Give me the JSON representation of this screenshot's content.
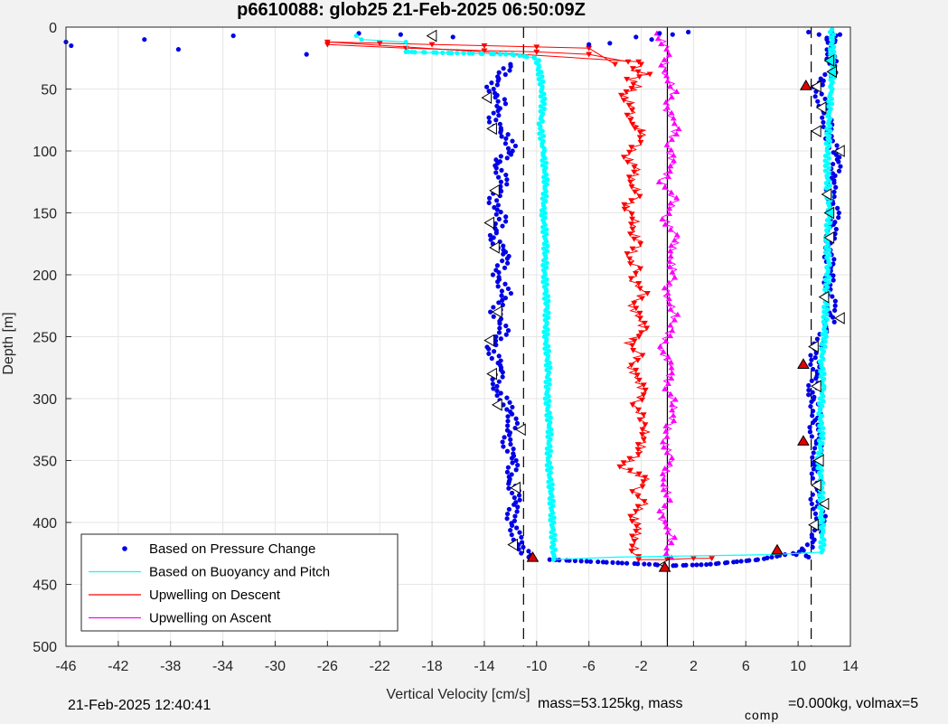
{
  "chart_data": {
    "type": "scatter",
    "title": "p6610088: glob25 21-Feb-2025 06:50:09Z",
    "xlabel": "Vertical Velocity [cm/s]",
    "ylabel": "Depth [m]",
    "xlim": [
      -46,
      14
    ],
    "ylim": [
      0,
      500
    ],
    "y_reversed": true,
    "grid": true,
    "x_ticks": [
      -46,
      -42,
      -38,
      -34,
      -30,
      -26,
      -22,
      -18,
      -14,
      -10,
      -6,
      -2,
      2,
      6,
      10,
      14
    ],
    "y_ticks": [
      0,
      50,
      100,
      150,
      200,
      250,
      300,
      350,
      400,
      450,
      500
    ],
    "legend_position": "bottom-left",
    "colors": {
      "pressure": "#0000e6",
      "buoyancy": "#00ffff",
      "descent": "#ff0000",
      "ascent": "#ff00ff",
      "marker_red": "#e00000"
    },
    "reference_lines": [
      {
        "x": -11,
        "style": "dashed"
      },
      {
        "x": 11,
        "style": "dashed"
      },
      {
        "x": 0,
        "style": "solid"
      }
    ],
    "series": [
      {
        "name": "Based on Pressure Change",
        "marker": "dot",
        "descent": [
          [
            -12,
            30
          ],
          [
            -12.8,
            40
          ],
          [
            -13.6,
            50
          ],
          [
            -12.6,
            60
          ],
          [
            -13.4,
            75
          ],
          [
            -12.2,
            90
          ],
          [
            -11.8,
            100
          ],
          [
            -13.2,
            110
          ],
          [
            -12.4,
            125
          ],
          [
            -13.4,
            140
          ],
          [
            -12.6,
            155
          ],
          [
            -13.4,
            170
          ],
          [
            -12.2,
            185
          ],
          [
            -13.1,
            200
          ],
          [
            -12.3,
            215
          ],
          [
            -13.2,
            230
          ],
          [
            -12.4,
            245
          ],
          [
            -13.6,
            260
          ],
          [
            -12.6,
            275
          ],
          [
            -13.3,
            290
          ],
          [
            -12.2,
            305
          ],
          [
            -11.8,
            320
          ],
          [
            -12.4,
            335
          ],
          [
            -11.6,
            350
          ],
          [
            -12.2,
            365
          ],
          [
            -11.4,
            380
          ],
          [
            -12,
            395
          ],
          [
            -11.6,
            410
          ],
          [
            -11.2,
            420
          ],
          [
            -10.6,
            428
          ]
        ],
        "ascent": [
          [
            10.8,
            428
          ],
          [
            9.8,
            425
          ],
          [
            10.8,
            420
          ],
          [
            11.4,
            410
          ],
          [
            11.8,
            395
          ],
          [
            11.2,
            385
          ],
          [
            11.6,
            370
          ],
          [
            11.2,
            355
          ],
          [
            11.6,
            340
          ],
          [
            11.2,
            325
          ],
          [
            11.4,
            310
          ],
          [
            11,
            295
          ],
          [
            11.4,
            280
          ],
          [
            11.2,
            265
          ],
          [
            11.8,
            250
          ],
          [
            12.4,
            240
          ],
          [
            12.6,
            225
          ],
          [
            12.2,
            210
          ],
          [
            12.6,
            195
          ],
          [
            12.2,
            180
          ],
          [
            12.6,
            165
          ],
          [
            12.8,
            150
          ],
          [
            12.4,
            135
          ],
          [
            12.8,
            120
          ],
          [
            13,
            105
          ],
          [
            12.4,
            90
          ],
          [
            12.2,
            75
          ],
          [
            11.8,
            60
          ],
          [
            11.4,
            50
          ],
          [
            11.6,
            45
          ],
          [
            12.8,
            35
          ],
          [
            12.4,
            20
          ],
          [
            12.6,
            5
          ]
        ],
        "turn": [
          [
            -9,
            430
          ],
          [
            -7,
            431
          ],
          [
            -5,
            432
          ],
          [
            -3,
            433
          ],
          [
            -1,
            434
          ],
          [
            0,
            435
          ],
          [
            3,
            434
          ],
          [
            5,
            432
          ],
          [
            7,
            430
          ],
          [
            9,
            426
          ]
        ],
        "surface": [
          [
            -46,
            12
          ],
          [
            -45.6,
            15
          ],
          [
            -40,
            10
          ],
          [
            -37.4,
            18
          ],
          [
            -33.2,
            7
          ],
          [
            -27.6,
            22
          ],
          [
            -23.6,
            5
          ],
          [
            -20.4,
            6
          ],
          [
            -16.4,
            8
          ],
          [
            -6,
            14
          ],
          [
            -4.4,
            13
          ],
          [
            -2.4,
            8
          ],
          [
            -1.2,
            10
          ],
          [
            0.4,
            6
          ],
          [
            1.6,
            4
          ],
          [
            -0.6,
            5
          ],
          [
            10.8,
            4
          ],
          [
            11.6,
            6
          ],
          [
            12.2,
            10
          ],
          [
            12.8,
            12
          ],
          [
            13.2,
            6
          ]
        ]
      },
      {
        "name": "Based on Buoyancy and Pitch",
        "marker": "line",
        "descent": [
          [
            -20,
            20
          ],
          [
            -16,
            21
          ],
          [
            -12,
            22
          ],
          [
            -10,
            25
          ],
          [
            -9.7,
            40
          ],
          [
            -9.5,
            60
          ],
          [
            -9.7,
            80
          ],
          [
            -9.5,
            100
          ],
          [
            -9.3,
            125
          ],
          [
            -9.5,
            150
          ],
          [
            -9.3,
            175
          ],
          [
            -9.4,
            200
          ],
          [
            -9.2,
            225
          ],
          [
            -9.3,
            250
          ],
          [
            -9.1,
            275
          ],
          [
            -9.2,
            300
          ],
          [
            -9,
            325
          ],
          [
            -9.1,
            350
          ],
          [
            -8.9,
            375
          ],
          [
            -8.8,
            400
          ],
          [
            -8.7,
            420
          ],
          [
            -8.7,
            430
          ]
        ],
        "turn": [
          [
            -8.7,
            430
          ],
          [
            -4,
            428
          ],
          [
            2,
            427
          ],
          [
            8,
            426
          ],
          [
            11.8,
            424
          ]
        ],
        "ascent": [
          [
            11.8,
            424
          ],
          [
            11.9,
            410
          ],
          [
            11.7,
            390
          ],
          [
            11.8,
            370
          ],
          [
            11.6,
            350
          ],
          [
            11.8,
            330
          ],
          [
            11.7,
            310
          ],
          [
            11.9,
            290
          ],
          [
            11.8,
            270
          ],
          [
            12,
            250
          ],
          [
            12.1,
            230
          ],
          [
            12.2,
            210
          ],
          [
            12.3,
            190
          ],
          [
            12.2,
            170
          ],
          [
            12.4,
            150
          ],
          [
            12.3,
            130
          ],
          [
            12.2,
            110
          ],
          [
            12.3,
            90
          ],
          [
            12.4,
            70
          ],
          [
            12.5,
            50
          ],
          [
            12.7,
            35
          ],
          [
            12.6,
            20
          ],
          [
            12.6,
            2
          ]
        ],
        "surface": [
          [
            -23.8,
            7
          ],
          [
            -23.4,
            10
          ],
          [
            -20,
            12
          ],
          [
            -19.8,
            20
          ]
        ]
      },
      {
        "name": "Upwelling on Descent",
        "marker": "down-triangle",
        "values": [
          [
            -2,
            30
          ],
          [
            -2.6,
            35
          ],
          [
            -1.6,
            38
          ],
          [
            -2.8,
            42
          ],
          [
            -2.2,
            48
          ],
          [
            -3.4,
            55
          ],
          [
            -2.5,
            65
          ],
          [
            -3,
            75
          ],
          [
            -1.8,
            85
          ],
          [
            -2.3,
            95
          ],
          [
            -3.1,
            105
          ],
          [
            -2.2,
            115
          ],
          [
            -2.9,
            125
          ],
          [
            -2,
            135
          ],
          [
            -3.2,
            145
          ],
          [
            -2.4,
            155
          ],
          [
            -2.7,
            165
          ],
          [
            -2,
            175
          ],
          [
            -3,
            185
          ],
          [
            -2.3,
            195
          ],
          [
            -2.6,
            205
          ],
          [
            -1.8,
            215
          ],
          [
            -2.8,
            225
          ],
          [
            -2.1,
            235
          ],
          [
            -1.8,
            245
          ],
          [
            -3,
            255
          ],
          [
            -2.2,
            265
          ],
          [
            -2.8,
            275
          ],
          [
            -2.3,
            285
          ],
          [
            -1.8,
            295
          ],
          [
            -2.5,
            305
          ],
          [
            -2,
            315
          ],
          [
            -1.6,
            325
          ],
          [
            -1.9,
            335
          ],
          [
            -2.1,
            345
          ],
          [
            -3.6,
            355
          ],
          [
            -1.6,
            365
          ],
          [
            -2.4,
            375
          ],
          [
            -1.8,
            385
          ],
          [
            -2.6,
            395
          ],
          [
            -2.1,
            405
          ],
          [
            -2.6,
            415
          ],
          [
            -2.4,
            425
          ],
          [
            -2.2,
            430
          ]
        ],
        "surface": [
          [
            -2.2,
            28
          ],
          [
            -26,
            12
          ],
          [
            -22,
            13
          ],
          [
            -18,
            14
          ],
          [
            -14,
            15
          ],
          [
            -10,
            16
          ],
          [
            -6,
            17
          ],
          [
            -4,
            30
          ]
        ],
        "surface_down": [
          [
            -26,
            14
          ],
          [
            -20,
            17
          ],
          [
            -14,
            19
          ],
          [
            -10,
            20
          ],
          [
            -6,
            22
          ],
          [
            -3,
            28
          ]
        ],
        "turn": [
          [
            -2.2,
            430
          ],
          [
            0,
            430
          ],
          [
            2,
            429
          ],
          [
            3.4,
            429
          ]
        ]
      },
      {
        "name": "Upwelling on Ascent",
        "marker": "up-triangle",
        "values": [
          [
            -0.8,
            5
          ],
          [
            0.2,
            20
          ],
          [
            -0.4,
            35
          ],
          [
            0.6,
            50
          ],
          [
            -0.2,
            65
          ],
          [
            0.8,
            80
          ],
          [
            0,
            95
          ],
          [
            0.4,
            110
          ],
          [
            -0.4,
            125
          ],
          [
            0.6,
            140
          ],
          [
            -0.2,
            155
          ],
          [
            0.8,
            170
          ],
          [
            0.2,
            185
          ],
          [
            0.6,
            200
          ],
          [
            -0.2,
            215
          ],
          [
            0.6,
            230
          ],
          [
            0.2,
            245
          ],
          [
            -0.6,
            260
          ],
          [
            0.4,
            275
          ],
          [
            -0.2,
            290
          ],
          [
            0.6,
            305
          ],
          [
            0.2,
            320
          ],
          [
            -0.2,
            335
          ],
          [
            0.4,
            350
          ],
          [
            -0.4,
            365
          ],
          [
            0.2,
            380
          ],
          [
            -0.6,
            395
          ],
          [
            0.4,
            410
          ],
          [
            -0.2,
            425
          ],
          [
            0.2,
            430
          ]
        ]
      }
    ],
    "markers_red_triangles": [
      [
        10.6,
        47
      ],
      [
        10.4,
        272
      ],
      [
        10.4,
        334
      ],
      [
        8.4,
        422
      ],
      [
        -10.3,
        428
      ],
      [
        -0.2,
        436
      ]
    ],
    "markers_open_triangles": [
      {
        "x": -18,
        "y": 7,
        "fill": "white"
      },
      {
        "x": -13.8,
        "y": 57,
        "fill": "white"
      },
      {
        "x": -13.4,
        "y": 82,
        "fill": "white"
      },
      {
        "x": -13.2,
        "y": 132,
        "fill": "white"
      },
      {
        "x": -13.6,
        "y": 158,
        "fill": "white"
      },
      {
        "x": -13.2,
        "y": 178,
        "fill": "white"
      },
      {
        "x": -13,
        "y": 230,
        "fill": "white"
      },
      {
        "x": -13.6,
        "y": 253,
        "fill": "white"
      },
      {
        "x": -13.4,
        "y": 280,
        "fill": "white"
      },
      {
        "x": -13,
        "y": 305,
        "fill": "white"
      },
      {
        "x": -11.2,
        "y": 325,
        "fill": "white"
      },
      {
        "x": -11.6,
        "y": 372,
        "fill": "white"
      },
      {
        "x": -11.8,
        "y": 418,
        "fill": "white"
      },
      {
        "x": 12.4,
        "y": 27,
        "fill": "cyan"
      },
      {
        "x": 12.6,
        "y": 36,
        "fill": "cyan"
      },
      {
        "x": 11.4,
        "y": 48,
        "fill": "white"
      },
      {
        "x": 11.8,
        "y": 65,
        "fill": "white"
      },
      {
        "x": 11.4,
        "y": 84,
        "fill": "white"
      },
      {
        "x": 13.2,
        "y": 100,
        "fill": "white"
      },
      {
        "x": 12.2,
        "y": 135,
        "fill": "white"
      },
      {
        "x": 12.4,
        "y": 150,
        "fill": "cyan"
      },
      {
        "x": 12.4,
        "y": 170,
        "fill": "white"
      },
      {
        "x": 12,
        "y": 218,
        "fill": "white"
      },
      {
        "x": 13.2,
        "y": 235,
        "fill": "white"
      },
      {
        "x": 11.2,
        "y": 258,
        "fill": "white"
      },
      {
        "x": 11.4,
        "y": 290,
        "fill": "white"
      },
      {
        "x": 11.6,
        "y": 350,
        "fill": "white"
      },
      {
        "x": 11.4,
        "y": 370,
        "fill": "white"
      },
      {
        "x": 12,
        "y": 385,
        "fill": "white"
      },
      {
        "x": 11.2,
        "y": 402,
        "fill": "white"
      },
      {
        "x": -0.2,
        "y": 434,
        "fill": "white"
      }
    ]
  },
  "footer": {
    "date": "21-Feb-2025 12:40:41",
    "mass_text": "mass=53.125kg, mass",
    "comp_sub": "comp",
    "comp_text": "=0.000kg, volmax=5"
  }
}
